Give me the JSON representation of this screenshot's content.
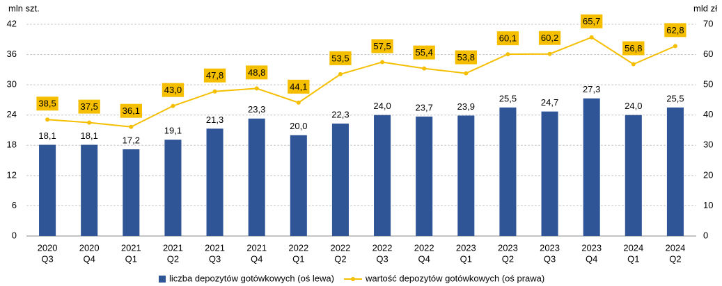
{
  "chart_data": {
    "type": "bar",
    "y_label": "mln szt.",
    "y2_label": "mld zł",
    "categories": [
      [
        "2020",
        "Q3"
      ],
      [
        "2020",
        "Q4"
      ],
      [
        "2021",
        "Q1"
      ],
      [
        "2021",
        "Q2"
      ],
      [
        "2021",
        "Q3"
      ],
      [
        "2021",
        "Q4"
      ],
      [
        "2022",
        "Q1"
      ],
      [
        "2022",
        "Q2"
      ],
      [
        "2022",
        "Q3"
      ],
      [
        "2022",
        "Q4"
      ],
      [
        "2023",
        "Q1"
      ],
      [
        "2023",
        "Q2"
      ],
      [
        "2023",
        "Q3"
      ],
      [
        "2023",
        "Q4"
      ],
      [
        "2024",
        "Q1"
      ],
      [
        "2024",
        "Q2"
      ]
    ],
    "series": [
      {
        "name": "liczba depozytów gotówkowych (oś lewa)",
        "type": "bar",
        "color": "#2f5597",
        "values": [
          18.1,
          18.1,
          17.2,
          19.1,
          21.3,
          23.3,
          20.0,
          22.3,
          24.0,
          23.7,
          23.9,
          25.5,
          24.7,
          27.3,
          24.0,
          25.5
        ],
        "value_labels": [
          "18,1",
          "18,1",
          "17,2",
          "19,1",
          "21,3",
          "23,3",
          "20,0",
          "22,3",
          "24,0",
          "23,7",
          "23,9",
          "25,5",
          "24,7",
          "27,3",
          "24,0",
          "25,5"
        ]
      },
      {
        "name": "wartość depozytów gotówkowych (oś prawa)",
        "type": "line",
        "axis": "y2",
        "color": "#f5bf00",
        "values": [
          38.5,
          37.5,
          36.1,
          43.0,
          47.8,
          48.8,
          44.1,
          53.5,
          57.5,
          55.4,
          53.8,
          60.1,
          60.2,
          65.7,
          56.8,
          62.8
        ],
        "value_labels": [
          "38,5",
          "37,5",
          "36,1",
          "43,0",
          "47,8",
          "48,8",
          "44,1",
          "53,5",
          "57,5",
          "55,4",
          "53,8",
          "60,1",
          "60,2",
          "65,7",
          "56,8",
          "62,8"
        ]
      }
    ],
    "ylim": [
      0,
      42
    ],
    "yticks": [
      0,
      6,
      12,
      18,
      24,
      30,
      36,
      42
    ],
    "y2lim": [
      0,
      70
    ],
    "y2ticks": [
      0,
      10,
      20,
      30,
      40,
      50,
      60,
      70
    ],
    "grid": true,
    "legend": "bottom"
  }
}
